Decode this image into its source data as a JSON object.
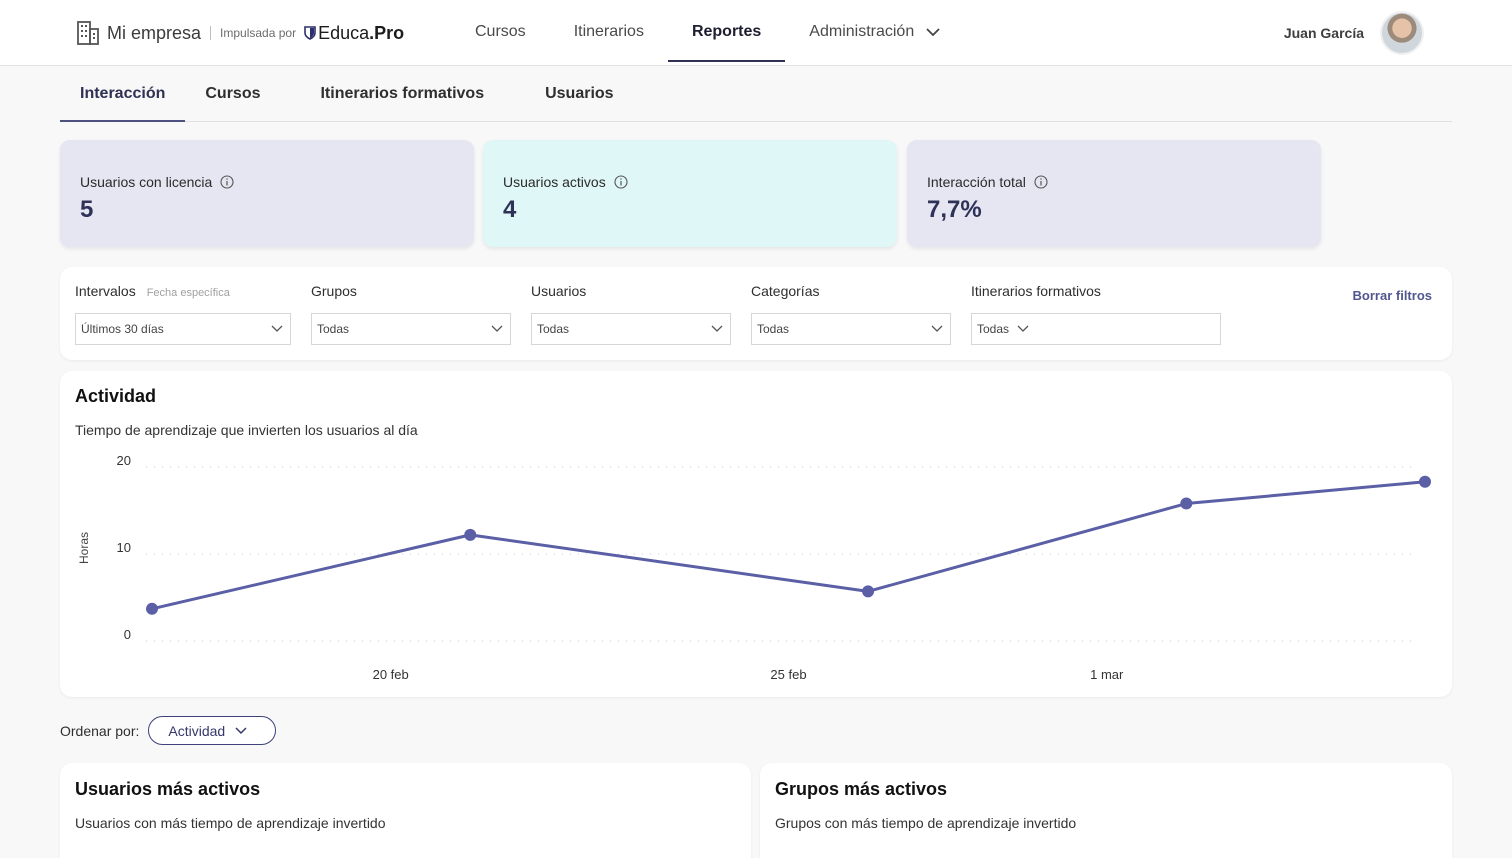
{
  "header": {
    "company": "Mi empresa",
    "powered_by": "Impulsada por",
    "logo_text_regular": "Educa",
    "logo_text_bold": ".Pro",
    "nav": [
      {
        "label": "Cursos",
        "active": false
      },
      {
        "label": "Itinerarios",
        "active": false
      },
      {
        "label": "Reportes",
        "active": true
      },
      {
        "label": "Administración",
        "active": false,
        "dropdown": true
      }
    ],
    "user_name": "Juan García"
  },
  "subtabs": [
    {
      "label": "Interacción",
      "active": true
    },
    {
      "label": "Cursos",
      "active": false
    },
    {
      "label": "Itinerarios formativos",
      "active": false
    },
    {
      "label": "Usuarios",
      "active": false
    }
  ],
  "kpis": [
    {
      "label": "Usuarios con licencia",
      "value": "5",
      "color": "#e5e6f1"
    },
    {
      "label": "Usuarios activos",
      "value": "4",
      "color": "#dff7f6"
    },
    {
      "label": "Interacción total",
      "value": "7,7%",
      "color": "#e5e6f1"
    }
  ],
  "filters": {
    "intervals_label": "Intervalos",
    "intervals_hint": "Fecha específica",
    "intervals_value": "Últimos 30 días",
    "groups_label": "Grupos",
    "groups_value": "Todas",
    "users_label": "Usuarios",
    "users_value": "Todas",
    "categories_label": "Categorías",
    "categories_value": "Todas",
    "paths_label": "Itinerarios formativos",
    "paths_value": "Todas",
    "clear_label": "Borrar filtros"
  },
  "activity": {
    "title": "Actividad",
    "subtitle": "Tiempo de aprendizaje que invierten los usuarios al día"
  },
  "chart_data": {
    "type": "line",
    "ylabel": "Horas",
    "xlabel": "",
    "ylim": [
      0,
      20
    ],
    "yticks": [
      "20",
      "10",
      "0"
    ],
    "xtick_labels": [
      "20 feb",
      "25 feb",
      "1 mar"
    ],
    "grid": true,
    "line_color": "#5a5fa6",
    "series": [
      {
        "x": [
          "17 feb",
          "21 feb",
          "26 feb",
          "2 mar",
          "5 mar"
        ],
        "values": [
          3.7,
          12.2,
          5.7,
          15.8,
          18.3
        ]
      }
    ]
  },
  "sort": {
    "label": "Ordenar por:",
    "value": "Actividad"
  },
  "panels": [
    {
      "title": "Usuarios más activos",
      "subtitle": "Usuarios con más tiempo de aprendizaje invertido"
    },
    {
      "title": "Grupos más activos",
      "subtitle": "Grupos con más tiempo de aprendizaje invertido"
    }
  ]
}
